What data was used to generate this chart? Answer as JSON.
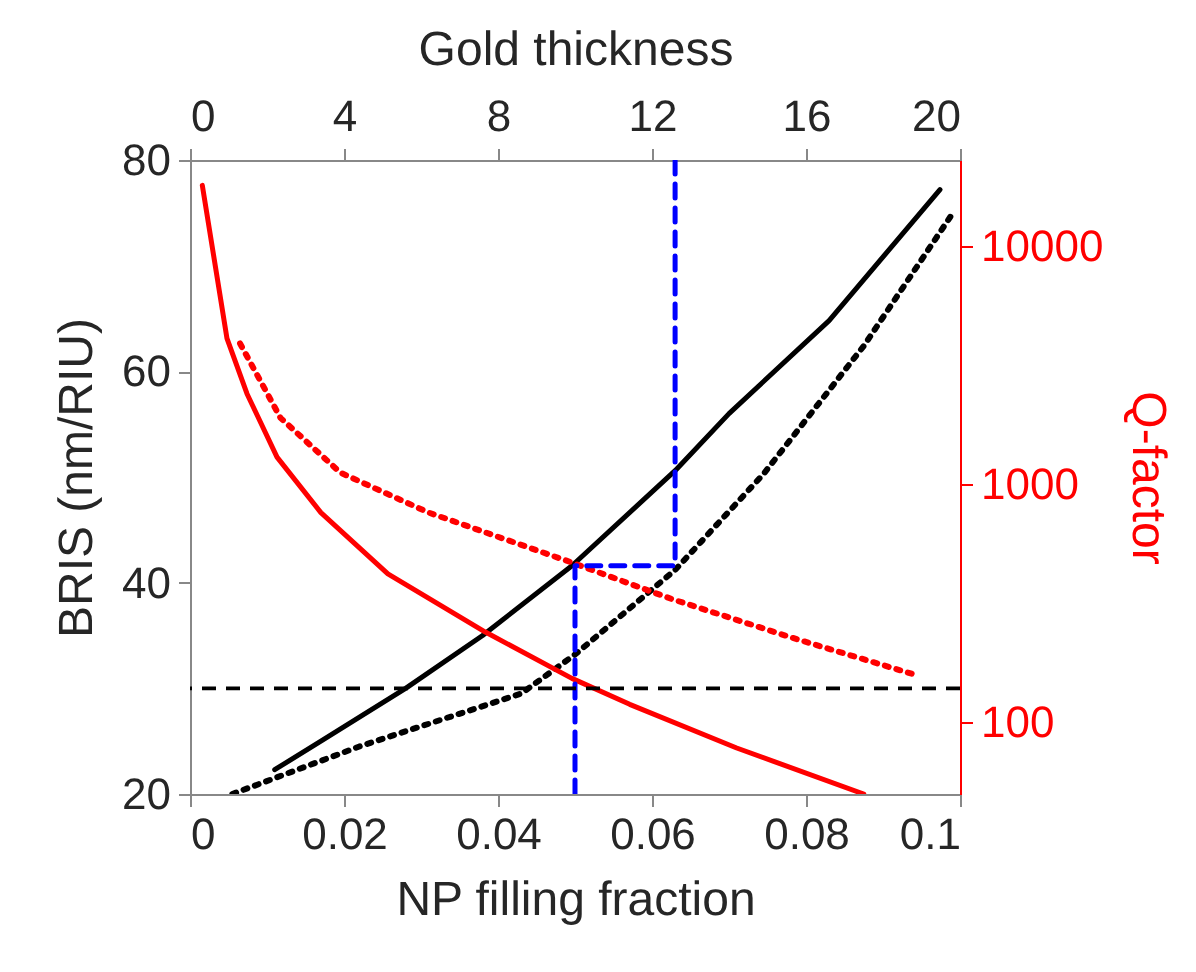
{
  "chart_data": {
    "type": "line",
    "xlabel": "NP filling fraction",
    "ylabel": "BRIS (nm/RIU)",
    "y2label": "Q-factor",
    "x2label": "Gold thickness",
    "xlim": [
      0,
      0.1
    ],
    "xticks": [
      0,
      0.02,
      0.04,
      0.06,
      0.08,
      0.1
    ],
    "x2lim": [
      0,
      20
    ],
    "x2ticks": [
      0,
      4,
      8,
      12,
      16,
      20
    ],
    "ylim": [
      20,
      80
    ],
    "yticks": [
      20,
      40,
      60,
      80
    ],
    "y2lim": [
      50,
      23000
    ],
    "y2ticks": [
      100,
      1000,
      10000
    ],
    "log": "y2",
    "grid": false,
    "series": [
      {
        "color": "#000000",
        "line_style": "solid",
        "x": [
          0.011,
          0.017,
          0.028,
          0.038,
          0.0496,
          0.063,
          0.07,
          0.083,
          0.0974
        ],
        "values": [
          22.3,
          25,
          30,
          35,
          41.6,
          50.6,
          56,
          64.8,
          77.2
        ]
      },
      {
        "color": "#000000",
        "line_style": "dotted",
        "axis": "x2",
        "x": [
          1.1,
          4.4,
          8.6,
          10.0,
          12.6,
          14.9,
          17.5,
          19.8
        ],
        "values": [
          20,
          24.5,
          29.5,
          33.2,
          41.2,
          50.3,
          62.4,
          74.9
        ]
      },
      {
        "color": "#ff0000",
        "line_style": "solid",
        "axis": "y2",
        "x": [
          0.0016,
          0.0048,
          0.0074,
          0.0113,
          0.017,
          0.0257,
          0.0383,
          0.0496,
          0.0571,
          0.071,
          0.0875
        ],
        "values": [
          18000,
          4100,
          2400,
          1300,
          760,
          420,
          240,
          153,
          119,
          78,
          50
        ]
      },
      {
        "color": "#ff0000",
        "line_style": "dotted",
        "axis": "y2",
        "x": [
          0.0065,
          0.01175,
          0.0195,
          0.031,
          0.0495,
          0.0625,
          0.0785,
          0.094
        ],
        "values": [
          3900,
          1900,
          1120,
          760,
          470,
          330,
          225,
          159
        ]
      },
      {
        "color": "#0000ff",
        "line_style": "dashed",
        "x": [
          0.05,
          0.05,
          0.063,
          0.063
        ],
        "values": [
          20,
          41.6,
          41.6,
          80
        ]
      }
    ],
    "ref_lines": [
      {
        "axis": "y",
        "value": 30,
        "color": "#000000",
        "line_style": "dashed"
      }
    ]
  }
}
